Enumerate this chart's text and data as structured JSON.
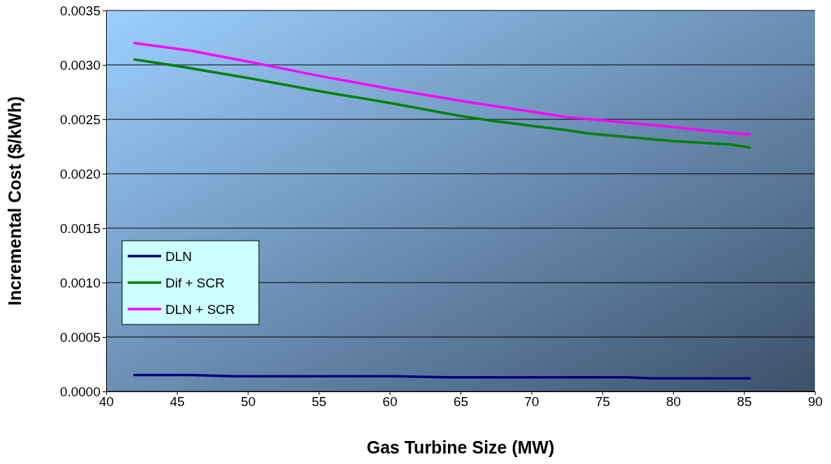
{
  "chart_data": {
    "type": "line",
    "xlabel": "Gas Turbine Size (MW)",
    "ylabel": "Incremental Cost ($/kWh)",
    "xlim": [
      40,
      90
    ],
    "xticks": [
      40,
      45,
      50,
      55,
      60,
      65,
      70,
      75,
      80,
      85,
      90
    ],
    "ylim": [
      0,
      0.0035
    ],
    "yticks": [
      {
        "value": 0,
        "label": "0.0000"
      },
      {
        "value": 0.0005,
        "label": "0.0005"
      },
      {
        "value": 0.001,
        "label": "0.0010"
      },
      {
        "value": 0.0015,
        "label": "0.0015"
      },
      {
        "value": 0.002,
        "label": "0.0020"
      },
      {
        "value": 0.0025,
        "label": "0.0025"
      },
      {
        "value": 0.003,
        "label": "0.0030"
      },
      {
        "value": 0.0035,
        "label": "0.0035"
      }
    ],
    "grid": "y",
    "legend": "left",
    "marker": "none",
    "line_style": "solid",
    "series": [
      {
        "name": "DLN",
        "color": "#000080",
        "x": [
          42,
          46,
          49,
          55,
          60.5,
          64,
          70,
          76.8,
          78.5,
          85.4
        ],
        "values": [
          0.00015,
          0.00015,
          0.00014,
          0.00014,
          0.00014,
          0.00013,
          0.00013,
          0.00013,
          0.00012,
          0.00012
        ]
      },
      {
        "name": "Dif + SCR",
        "color": "#008000",
        "x": [
          42,
          45,
          50,
          55,
          60,
          65,
          67,
          70,
          72.5,
          74,
          80,
          84,
          85.4
        ],
        "values": [
          0.00305,
          0.00299,
          0.00288,
          0.00276,
          0.00265,
          0.00253,
          0.00249,
          0.00244,
          0.0024,
          0.00237,
          0.0023,
          0.00227,
          0.00224
        ]
      },
      {
        "name": "DLN + SCR",
        "color": "#ff00ff",
        "x": [
          42,
          46,
          50,
          55,
          60,
          65,
          67,
          70,
          72.5,
          75,
          80,
          82,
          85.4
        ],
        "values": [
          0.0032,
          0.00313,
          0.00303,
          0.0029,
          0.00278,
          0.00267,
          0.00263,
          0.00257,
          0.00252,
          0.00249,
          0.00243,
          0.0024,
          0.00236
        ]
      }
    ]
  }
}
